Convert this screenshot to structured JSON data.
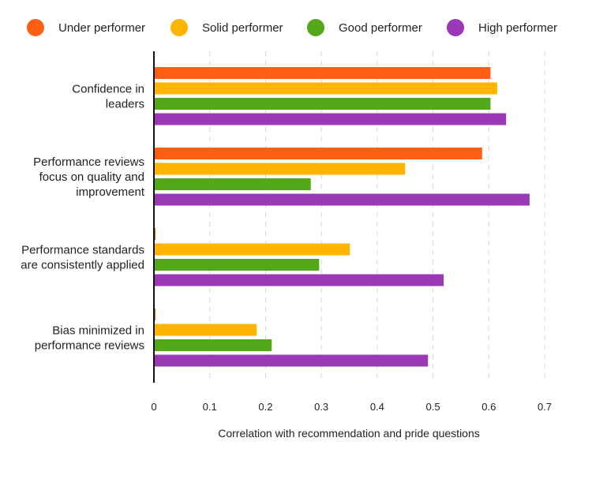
{
  "chart_data": {
    "type": "bar",
    "orientation": "horizontal",
    "xlabel": "Correlation with recommendation and pride questions",
    "xlim": [
      0,
      0.7
    ],
    "xticks": [
      "0",
      "0.1",
      "0.2",
      "0.3",
      "0.4",
      "0.5",
      "0.6",
      "0.7"
    ],
    "grid": "vertical dashed",
    "legend_placement": "top",
    "categories": [
      [
        "Confidence in",
        "leaders"
      ],
      [
        "Performance reviews",
        "focus on quality and",
        "improvement"
      ],
      [
        "Performance standards",
        "are consistently applied"
      ],
      [
        "Bias minimized in",
        "performance reviews"
      ]
    ],
    "series": [
      {
        "name": "Under performer",
        "color": "#FF5F12",
        "values": [
          0.603,
          0.588,
          0.002,
          0.002
        ]
      },
      {
        "name": "Solid performer",
        "color": "#FFB400",
        "values": [
          0.615,
          0.45,
          0.351,
          0.184
        ]
      },
      {
        "name": "Good performer",
        "color": "#52A818",
        "values": [
          0.603,
          0.281,
          0.296,
          0.211
        ]
      },
      {
        "name": "High performer",
        "color": "#9B38B5",
        "values": [
          0.631,
          0.673,
          0.519,
          0.491
        ]
      }
    ]
  }
}
